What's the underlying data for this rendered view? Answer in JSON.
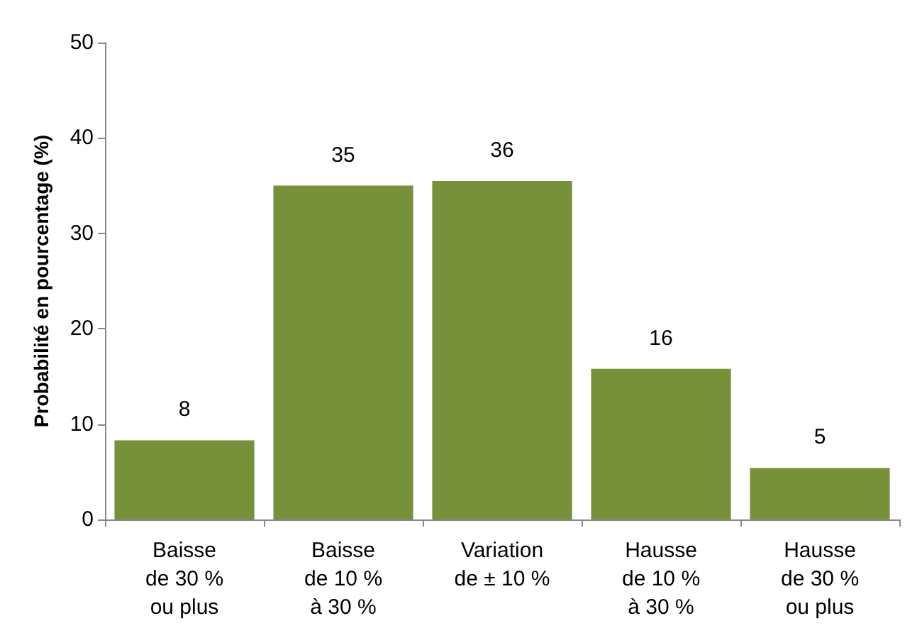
{
  "chart_data": {
    "type": "bar",
    "ylabel": "Probabilité en pourcentage (%)",
    "categories": [
      "Baisse\nde 30 %\nou plus",
      "Baisse\nde 10 %\nà 30 %",
      "Variation\nde ± 10 %",
      "Hausse\nde 10 %\nà 30 %",
      "Hausse\nde 30 %\nou plus"
    ],
    "values": [
      8.3,
      35,
      35.5,
      15.8,
      5.4
    ],
    "value_labels": [
      "8",
      "35",
      "36",
      "16",
      "5"
    ],
    "color": "#77903a",
    "ylim": [
      0,
      50
    ],
    "yticks": [
      0,
      10,
      20,
      30,
      40,
      50
    ],
    "grid": false
  }
}
